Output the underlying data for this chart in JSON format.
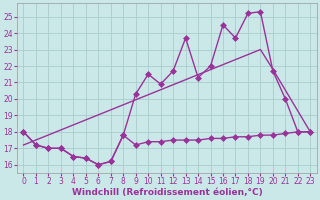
{
  "background_color": "#cbe8e8",
  "grid_color": "#aacccc",
  "line_color": "#993399",
  "markersize": 3,
  "linewidth": 1.0,
  "xlabel": "Windchill (Refroidissement éolien,°C)",
  "xlabel_fontsize": 6.5,
  "tick_fontsize": 5.5,
  "xlim": [
    -0.5,
    23.5
  ],
  "ylim": [
    15.5,
    25.8
  ],
  "yticks": [
    16,
    17,
    18,
    19,
    20,
    21,
    22,
    23,
    24,
    25
  ],
  "xticks": [
    0,
    1,
    2,
    3,
    4,
    5,
    6,
    7,
    8,
    9,
    10,
    11,
    12,
    13,
    14,
    15,
    16,
    17,
    18,
    19,
    20,
    21,
    22,
    23
  ],
  "series_windchill_x": [
    0,
    1,
    2,
    3,
    4,
    5,
    6,
    7,
    8,
    9,
    10,
    11,
    12,
    13,
    14,
    15,
    16,
    17,
    18,
    19,
    20,
    21,
    22,
    23
  ],
  "series_windchill_y": [
    18.0,
    17.2,
    17.0,
    17.0,
    16.5,
    16.4,
    16.0,
    16.2,
    17.8,
    17.2,
    17.4,
    17.4,
    17.5,
    17.5,
    17.5,
    17.6,
    17.6,
    17.7,
    17.7,
    17.8,
    17.8,
    17.9,
    18.0,
    18.0
  ],
  "series_temp_x": [
    0,
    1,
    2,
    3,
    4,
    5,
    6,
    7,
    8,
    9,
    10,
    11,
    12,
    13,
    14,
    15,
    16,
    17,
    18,
    19,
    20,
    21,
    22,
    23
  ],
  "series_temp_y": [
    18.0,
    17.2,
    17.0,
    17.0,
    16.5,
    16.4,
    16.0,
    16.2,
    17.8,
    20.3,
    21.5,
    20.9,
    21.7,
    23.7,
    21.3,
    22.0,
    24.5,
    23.7,
    25.2,
    25.3,
    21.7,
    20.0,
    18.0,
    18.0
  ],
  "series_trend_x": [
    0,
    19,
    20,
    23
  ],
  "series_trend_y": [
    17.2,
    23.0,
    21.8,
    18.0
  ]
}
